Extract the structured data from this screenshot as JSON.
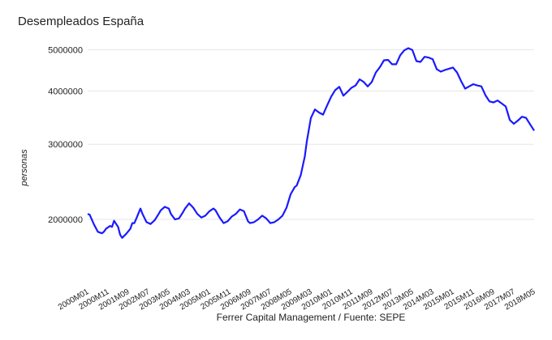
{
  "chart_data": {
    "type": "line",
    "title": "Desempleados España",
    "xlabel": "Ferrer Capital Management / Fuente: SEPE",
    "ylabel": "personas",
    "yscale": "log",
    "ylim": [
      1600000,
      5300000
    ],
    "yticks": [
      2000000,
      3000000,
      4000000,
      5000000
    ],
    "ytick_labels": [
      "2000000",
      "3000000",
      "4000000",
      "5000000"
    ],
    "xlim": [
      "2000-01",
      "2018-05"
    ],
    "xtick_labels": [
      "2000M01",
      "2000M11",
      "2001M09",
      "2002M07",
      "2003M05",
      "2004M03",
      "2005M01",
      "2005M11",
      "2006M09",
      "2007M07",
      "2008M05",
      "2009M03",
      "2010M01",
      "2010M11",
      "2011M09",
      "2012M07",
      "2013M05",
      "2014M03",
      "2015M01",
      "2015M11",
      "2016M09",
      "2017M07",
      "2018M05"
    ],
    "grid": true,
    "line_color": "#1a1aff",
    "series": [
      {
        "x": [
          "2000-01",
          "2000-02",
          "2000-04",
          "2000-06",
          "2000-08",
          "2000-09",
          "2000-10",
          "2000-12",
          "2001-01",
          "2001-02",
          "2001-04",
          "2001-05",
          "2001-06",
          "2001-08",
          "2001-10",
          "2001-11",
          "2001-12",
          "2002-01",
          "2002-03",
          "2002-04",
          "2002-06",
          "2002-08",
          "2002-10",
          "2002-12",
          "2003-01",
          "2003-03",
          "2003-05",
          "2003-06",
          "2003-08",
          "2003-10",
          "2003-12",
          "2004-01",
          "2004-03",
          "2004-05",
          "2004-07",
          "2004-09",
          "2004-11",
          "2005-01",
          "2005-03",
          "2005-04",
          "2005-06",
          "2005-08",
          "2005-10",
          "2005-12",
          "2006-02",
          "2006-04",
          "2006-06",
          "2006-08",
          "2006-09",
          "2006-11",
          "2007-01",
          "2007-03",
          "2007-05",
          "2007-07",
          "2007-09",
          "2007-11",
          "2008-01",
          "2008-03",
          "2008-05",
          "2008-07",
          "2008-08",
          "2008-10",
          "2008-12",
          "2009-01",
          "2009-03",
          "2009-05",
          "2009-07",
          "2009-09",
          "2009-11",
          "2010-01",
          "2010-03",
          "2010-05",
          "2010-07",
          "2010-09",
          "2010-11",
          "2011-01",
          "2011-03",
          "2011-05",
          "2011-07",
          "2011-09",
          "2011-11",
          "2012-01",
          "2012-03",
          "2012-05",
          "2012-07",
          "2012-09",
          "2012-11",
          "2013-01",
          "2013-03",
          "2013-05",
          "2013-07",
          "2013-09",
          "2013-11",
          "2014-01",
          "2014-03",
          "2014-05",
          "2014-07",
          "2014-09",
          "2014-11",
          "2015-01",
          "2015-03",
          "2015-05",
          "2015-07",
          "2015-09",
          "2015-11",
          "2016-01",
          "2016-03",
          "2016-05",
          "2016-07",
          "2016-09",
          "2016-11",
          "2017-01",
          "2017-03",
          "2017-05",
          "2017-07",
          "2017-09",
          "2017-11",
          "2018-01",
          "2018-03",
          "2018-05"
        ],
        "values": [
          2060000,
          2050000,
          1950000,
          1870000,
          1855000,
          1870000,
          1900000,
          1930000,
          1920000,
          1985000,
          1920000,
          1840000,
          1810000,
          1850000,
          1900000,
          1960000,
          1960000,
          2010000,
          2120000,
          2060000,
          1970000,
          1950000,
          1990000,
          2060000,
          2100000,
          2140000,
          2120000,
          2060000,
          2000000,
          2010000,
          2080000,
          2120000,
          2180000,
          2130000,
          2060000,
          2020000,
          2040000,
          2090000,
          2120000,
          2100000,
          2020000,
          1960000,
          1980000,
          2030000,
          2060000,
          2110000,
          2090000,
          1980000,
          1960000,
          1970000,
          2000000,
          2040000,
          2010000,
          1960000,
          1970000,
          2000000,
          2040000,
          2130000,
          2290000,
          2380000,
          2400000,
          2540000,
          2810000,
          3050000,
          3460000,
          3620000,
          3560000,
          3520000,
          3700000,
          3880000,
          4020000,
          4090000,
          3900000,
          3980000,
          4070000,
          4120000,
          4260000,
          4200000,
          4100000,
          4200000,
          4420000,
          4550000,
          4720000,
          4730000,
          4620000,
          4620000,
          4850000,
          4980000,
          5040000,
          4990000,
          4700000,
          4680000,
          4810000,
          4790000,
          4750000,
          4500000,
          4440000,
          4480000,
          4510000,
          4540000,
          4420000,
          4220000,
          4050000,
          4100000,
          4150000,
          4120000,
          4100000,
          3910000,
          3780000,
          3760000,
          3800000,
          3740000,
          3680000,
          3420000,
          3350000,
          3410000,
          3480000,
          3460000,
          3340000,
          3230000
        ]
      }
    ]
  }
}
